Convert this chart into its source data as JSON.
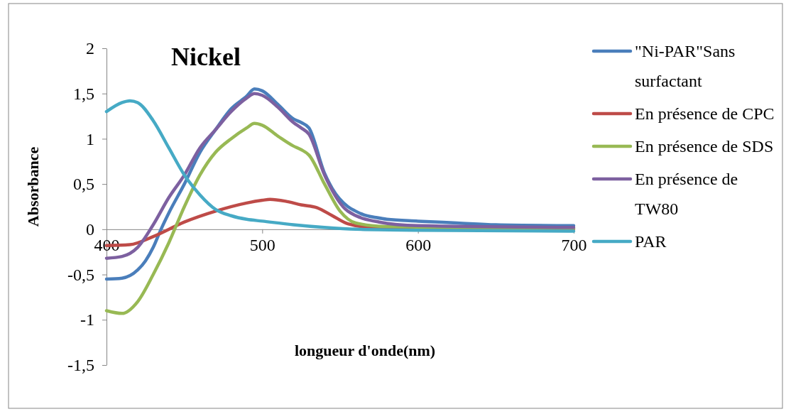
{
  "chart_data": {
    "type": "line",
    "title": "Nickel",
    "xlabel": "longueur d'onde(nm)",
    "ylabel": "Absorbance",
    "xlim": [
      400,
      700
    ],
    "xticks": [
      400,
      500,
      600,
      700
    ],
    "ylim": [
      -1.5,
      2
    ],
    "yticks": [
      {
        "value": -1.5,
        "label": "-1,5"
      },
      -1,
      {
        "value": -0.5,
        "label": "-0,5"
      },
      0,
      {
        "value": 0.5,
        "label": "0,5"
      },
      1,
      {
        "value": 1.5,
        "label": "1,5"
      },
      2
    ],
    "grid": false,
    "legend": "right",
    "marker": "none",
    "line_style": "solid",
    "series": [
      {
        "name": "\"Ni-PAR\"Sans surfactant",
        "color": "#4a7ebb",
        "x": [
          400,
          410,
          420,
          425,
          430,
          435,
          440,
          450,
          460,
          470,
          480,
          490,
          495,
          500,
          510,
          520,
          525,
          530,
          540,
          545,
          555,
          560,
          565,
          573,
          580,
          600,
          625,
          650,
          700
        ],
        "values": [
          -0.55,
          -0.54,
          -0.45,
          -0.35,
          -0.2,
          0,
          0.18,
          0.5,
          0.85,
          1.1,
          1.33,
          1.47,
          1.55,
          1.53,
          1.38,
          1.22,
          1.18,
          1.12,
          0.62,
          0.45,
          0.25,
          0.2,
          0.16,
          0.13,
          0.11,
          0.09,
          0.07,
          0.05,
          0.04
        ]
      },
      {
        "name": "En présence de CPC",
        "color": "#be4b48",
        "x": [
          400,
          415,
          430,
          450,
          470,
          490,
          500,
          505,
          515,
          525,
          535,
          545,
          555,
          570,
          600,
          700
        ],
        "values": [
          -0.18,
          -0.17,
          -0.08,
          0.08,
          0.2,
          0.29,
          0.32,
          0.33,
          0.31,
          0.27,
          0.24,
          0.15,
          0.06,
          0.02,
          0.01,
          0
        ]
      },
      {
        "name": "En présence de SDS",
        "color": "#98b954",
        "x": [
          400,
          410,
          420,
          430,
          440,
          450,
          460,
          470,
          480,
          490,
          495,
          500,
          510,
          520,
          525,
          530,
          540,
          550,
          560,
          580,
          700
        ],
        "values": [
          -0.9,
          -0.93,
          -0.8,
          -0.5,
          -0.15,
          0.25,
          0.6,
          0.85,
          1,
          1.12,
          1.17,
          1.15,
          1.03,
          0.92,
          0.88,
          0.82,
          0.5,
          0.2,
          0.07,
          0.03,
          0.01
        ]
      },
      {
        "name": "En présence de TW80",
        "color": "#7d60a0",
        "x": [
          400,
          410,
          420,
          430,
          440,
          450,
          460,
          470,
          480,
          490,
          495,
          500,
          510,
          520,
          525,
          530,
          540,
          555,
          575,
          600,
          700
        ],
        "values": [
          -0.32,
          -0.3,
          -0.2,
          0.05,
          0.35,
          0.6,
          0.9,
          1.1,
          1.3,
          1.45,
          1.5,
          1.48,
          1.35,
          1.18,
          1.12,
          1.05,
          0.6,
          0.2,
          0.08,
          0.04,
          0.02
        ]
      },
      {
        "name": "PAR",
        "color": "#46aac5",
        "x": [
          400,
          410,
          415,
          420,
          430,
          440,
          450,
          460,
          470,
          480,
          490,
          500,
          520,
          540,
          560,
          600,
          700
        ],
        "values": [
          1.3,
          1.4,
          1.42,
          1.4,
          1.2,
          0.9,
          0.6,
          0.38,
          0.22,
          0.15,
          0.11,
          0.09,
          0.05,
          0.02,
          0,
          -0.01,
          -0.02
        ]
      }
    ]
  }
}
